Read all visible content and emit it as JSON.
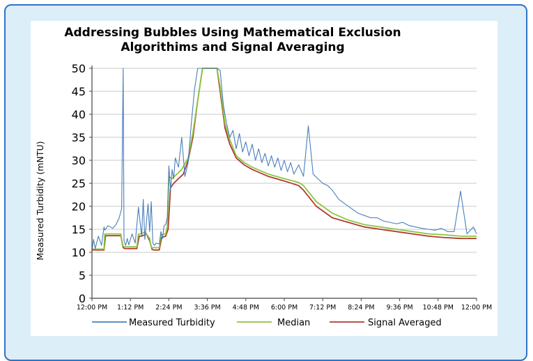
{
  "chart_data": {
    "type": "line",
    "title": [
      "Addressing Bubbles Using Mathematical Exclusion",
      "Algorithims and Signal Averaging"
    ],
    "ylabel": "Measured Turbidity (mNTU)",
    "xlabel": "",
    "ylim": [
      0,
      50
    ],
    "yticks": [
      0,
      5,
      10,
      15,
      20,
      25,
      30,
      35,
      40,
      45,
      50
    ],
    "xlim": [
      0,
      24
    ],
    "xticks": [
      "12:00 PM",
      "1:12 PM",
      "2:24 PM",
      "3:36 PM",
      "4:48 PM",
      "6:00 PM",
      "7:12 PM",
      "8:24 PM",
      "9:36 PM",
      "10:48 PM",
      "12:00 PM"
    ],
    "grid": "horizontal",
    "legend_position": "bottom",
    "x_unit": "hours after 12:00 PM",
    "series": [
      {
        "name": "Measured Turbidity",
        "color": "#4a7ebb",
        "x": [
          0,
          0.1,
          0.2,
          0.4,
          0.6,
          0.75,
          0.8,
          1.0,
          1.3,
          1.5,
          1.7,
          1.85,
          1.95,
          2.0,
          2.1,
          2.2,
          2.3,
          2.5,
          2.7,
          2.9,
          3.1,
          3.2,
          3.3,
          3.4,
          3.5,
          3.6,
          3.7,
          3.8,
          3.9,
          4.0,
          4.2,
          4.3,
          4.4,
          4.5,
          4.6,
          4.7,
          4.8,
          4.9,
          5.0,
          5.1,
          5.2,
          5.4,
          5.6,
          5.8,
          6.0,
          6.2,
          6.4,
          6.6,
          6.8,
          7.0,
          7.2,
          7.4,
          7.6,
          7.8,
          8.0,
          8.2,
          8.4,
          8.6,
          8.8,
          9.0,
          9.2,
          9.4,
          9.6,
          9.8,
          10.0,
          10.2,
          10.4,
          10.6,
          10.8,
          11.0,
          11.2,
          11.4,
          11.6,
          11.8,
          12.0,
          12.2,
          12.4,
          12.6,
          12.9,
          13.2,
          13.5,
          13.8,
          14.1,
          14.4,
          14.7,
          15.0,
          15.4,
          15.8,
          16.2,
          16.6,
          17.0,
          17.4,
          17.8,
          18.2,
          18.6,
          19.0,
          19.4,
          19.8,
          20.2,
          20.6,
          21.0,
          21.4,
          21.8,
          22.2,
          22.6,
          23.0,
          23.4,
          23.8,
          24.0
        ],
        "values": [
          10.5,
          12.8,
          10.8,
          13.5,
          11.5,
          15.5,
          14.8,
          15.8,
          15.2,
          16.0,
          17.5,
          19.5,
          50.5,
          12.5,
          11.5,
          13.0,
          11.6,
          14.0,
          12.0,
          19.8,
          13.5,
          21.5,
          12.8,
          16.5,
          20.5,
          14.5,
          21.0,
          12.0,
          11.5,
          12.0,
          11.8,
          14.5,
          13.0,
          15.8,
          16.0,
          17.5,
          28.8,
          23.5,
          28.0,
          26.0,
          30.5,
          28.5,
          35.0,
          26.5,
          29.5,
          38.0,
          45.5,
          51.0,
          51.0,
          51.0,
          51.0,
          51.0,
          51.0,
          51.0,
          49.5,
          42.0,
          38.0,
          35.0,
          36.5,
          32.5,
          35.8,
          31.8,
          34.0,
          31.0,
          33.5,
          30.0,
          32.5,
          29.5,
          31.5,
          28.8,
          31.0,
          28.5,
          30.5,
          27.8,
          30.0,
          27.5,
          29.5,
          27.0,
          29.0,
          26.5,
          37.5,
          27.0,
          26.0,
          25.0,
          24.5,
          23.5,
          21.5,
          20.5,
          19.5,
          18.5,
          18.0,
          17.5,
          17.5,
          16.8,
          16.5,
          16.2,
          16.5,
          15.8,
          15.5,
          15.2,
          15.0,
          14.8,
          15.2,
          14.5,
          14.5,
          23.3,
          14.0,
          15.5,
          14.0
        ]
      },
      {
        "name": "Median",
        "color": "#8cc63f",
        "x": [
          0,
          0.75,
          0.8,
          1.8,
          1.9,
          2.0,
          2.8,
          2.9,
          3.1,
          3.3,
          3.6,
          3.7,
          3.8,
          4.2,
          4.3,
          4.6,
          4.7,
          4.8,
          5.0,
          5.3,
          5.6,
          6.0,
          6.3,
          6.6,
          6.9,
          7.2,
          7.5,
          7.8,
          8.0,
          8.3,
          8.6,
          9.0,
          9.5,
          10.0,
          11.0,
          12.0,
          12.9,
          13.2,
          14.0,
          15.0,
          16.0,
          17.0,
          18.0,
          19.0,
          20.0,
          21.0,
          22.0,
          23.0,
          24.0
        ],
        "values": [
          10.7,
          10.7,
          14.0,
          14.0,
          11.5,
          11.2,
          11.2,
          14.0,
          14.0,
          14.5,
          13.0,
          11.0,
          11.0,
          11.0,
          13.8,
          14.0,
          15.5,
          26.5,
          26.0,
          27.0,
          28.0,
          30.5,
          36.0,
          43.0,
          51.0,
          51.0,
          51.0,
          51.0,
          46.0,
          38.0,
          34.5,
          31.0,
          29.5,
          28.5,
          27.0,
          26.0,
          25.2,
          24.5,
          21.0,
          18.5,
          17.0,
          16.0,
          15.5,
          15.0,
          14.5,
          14.0,
          13.8,
          13.5,
          13.5
        ]
      },
      {
        "name": "Signal Averaged",
        "color": "#b03a2e",
        "x": [
          0,
          0.75,
          0.85,
          1.8,
          1.95,
          2.05,
          2.8,
          2.95,
          3.1,
          3.4,
          3.6,
          3.75,
          3.85,
          4.2,
          4.35,
          4.6,
          4.75,
          4.9,
          5.1,
          5.4,
          5.7,
          6.0,
          6.3,
          6.6,
          6.9,
          7.2,
          7.5,
          7.8,
          8.0,
          8.3,
          8.6,
          9.0,
          9.5,
          10.0,
          11.0,
          12.0,
          12.9,
          13.2,
          14.0,
          15.0,
          16.0,
          17.0,
          18.0,
          19.0,
          20.0,
          21.0,
          22.0,
          23.0,
          24.0
        ],
        "values": [
          10.5,
          10.5,
          13.6,
          13.6,
          11.0,
          10.8,
          10.8,
          13.5,
          13.5,
          14.0,
          12.5,
          10.6,
          10.5,
          10.5,
          13.2,
          13.5,
          15.0,
          24.0,
          25.0,
          26.0,
          27.0,
          30.0,
          35.0,
          43.0,
          51.0,
          51.0,
          51.0,
          51.0,
          45.0,
          37.0,
          33.5,
          30.5,
          29.0,
          28.0,
          26.5,
          25.5,
          24.5,
          23.5,
          20.0,
          17.5,
          16.5,
          15.5,
          15.0,
          14.5,
          14.0,
          13.5,
          13.2,
          13.0,
          13.0
        ]
      }
    ]
  }
}
